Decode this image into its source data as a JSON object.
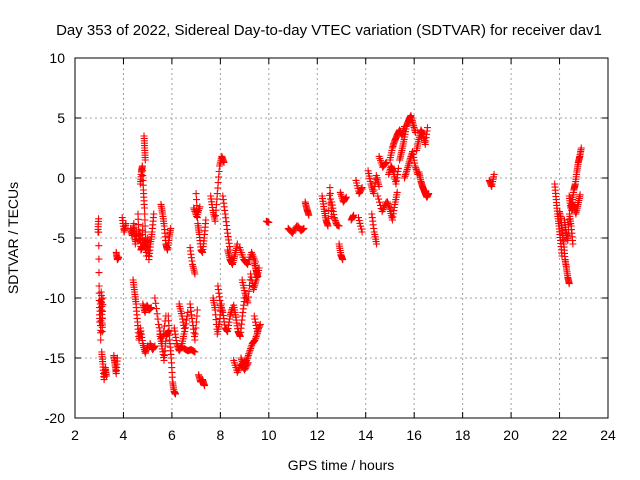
{
  "chart_data": {
    "type": "scatter",
    "title": "Day 353 of 2022, Sidereal Day-to-day VTEC variation (SDTVAR) for receiver dav1",
    "xlabel": "GPS time / hours",
    "ylabel": "SDTVAR / TECUs",
    "xlim": [
      2,
      24
    ],
    "ylim": [
      -20,
      10
    ],
    "xticks": [
      "2",
      "4",
      "6",
      "8",
      "10",
      "12",
      "14",
      "16",
      "18",
      "20",
      "22",
      "24"
    ],
    "yticks": [
      "10",
      "5",
      "0",
      "-5",
      "-10",
      "-15",
      "-20"
    ],
    "grid": true,
    "marker": "+",
    "color": "#ff0000",
    "series": [
      {
        "name": "SDTVAR",
        "segments": [
          {
            "x0": 2.95,
            "x1": 3.15,
            "y": [
              -4.5,
              -3.4,
              -9,
              -12,
              -10.5,
              -13.5,
              -9.5,
              -11,
              -12.8,
              -10
            ]
          },
          {
            "x0": 3.1,
            "x1": 3.3,
            "y": [
              -14.5,
              -15.5,
              -16.8,
              -15.8,
              -16.5
            ]
          },
          {
            "x0": 3.6,
            "x1": 3.75,
            "y": [
              -14.8,
              -15.5,
              -16.3,
              -15
            ]
          },
          {
            "x0": 3.7,
            "x1": 3.8,
            "y": [
              -6.2,
              -6.8,
              -6.6
            ]
          },
          {
            "x0": 3.95,
            "x1": 4.1,
            "y": [
              -3.3,
              -4.5,
              -3.8
            ]
          },
          {
            "x0": 4.3,
            "x1": 4.55,
            "y": [
              -4.2,
              -4.8,
              -3.8,
              -5.5,
              -4.5
            ]
          },
          {
            "x0": 4.4,
            "x1": 4.7,
            "y": [
              -8.5,
              -9.5,
              -10.5,
              -12,
              -13.5,
              -12.8
            ]
          },
          {
            "x0": 4.6,
            "x1": 4.8,
            "y": [
              -3,
              -5.2,
              -4.5,
              -6,
              -5.8,
              -4
            ]
          },
          {
            "x0": 4.7,
            "x1": 4.95,
            "y": [
              -0.5,
              0.5,
              1,
              -1,
              -2.5,
              -5,
              -6.5
            ]
          },
          {
            "x0": 4.85,
            "x1": 4.9,
            "y": [
              3.5,
              2.5,
              1.5
            ]
          },
          {
            "x0": 4.85,
            "x1": 5.25,
            "y": [
              -5.2,
              -6,
              -5,
              -6.8,
              -5.5,
              -4.5,
              -3
            ]
          },
          {
            "x0": 4.8,
            "x1": 5.15,
            "y": [
              -10.5,
              -11.2,
              -10.6,
              -11,
              -10.8
            ]
          },
          {
            "x0": 4.7,
            "x1": 5.0,
            "y": [
              -12.5,
              -13.8,
              -14.6,
              -14
            ]
          },
          {
            "x0": 5.1,
            "x1": 5.3,
            "y": [
              -13.8,
              -14.3,
              -14
            ]
          },
          {
            "x0": 5.3,
            "x1": 5.75,
            "y": [
              -10,
              -12.2,
              -13.6,
              -11.5
            ]
          },
          {
            "x0": 5.55,
            "x1": 5.95,
            "y": [
              -2.2,
              -3,
              -4,
              -5.5,
              -6,
              -5,
              -4.2
            ]
          },
          {
            "x0": 5.5,
            "x1": 5.85,
            "y": [
              -13,
              -14,
              -15.2,
              -13.2,
              -12.8
            ]
          },
          {
            "x0": 5.85,
            "x1": 6.15,
            "y": [
              -11.5,
              -13.5,
              -15,
              -17,
              -17.8,
              -18
            ]
          },
          {
            "x0": 6.1,
            "x1": 6.5,
            "y": [
              -12.5,
              -13.8,
              -14.4,
              -14,
              -13
            ]
          },
          {
            "x0": 6.3,
            "x1": 6.65,
            "y": [
              -10.5,
              -11.5,
              -12.8,
              -11.2
            ]
          },
          {
            "x0": 6.5,
            "x1": 6.95,
            "y": [
              -14.2,
              -14.4,
              -14.3,
              -14.5
            ]
          },
          {
            "x0": 6.75,
            "x1": 6.95,
            "y": [
              -5.8,
              -7.2,
              -8
            ]
          },
          {
            "x0": 6.75,
            "x1": 7.05,
            "y": [
              -10.5,
              -12,
              -13.5,
              -11
            ]
          },
          {
            "x0": 6.9,
            "x1": 7.15,
            "y": [
              -2.5,
              -3.2,
              -2.4
            ]
          },
          {
            "x0": 7.0,
            "x1": 7.4,
            "y": [
              -1.3,
              -3.8,
              -4.7,
              -6,
              -6.2,
              -5,
              -3.5
            ]
          },
          {
            "x0": 7.1,
            "x1": 7.35,
            "y": [
              -16.4,
              -17,
              -16.8,
              -17.3
            ]
          },
          {
            "x0": 7.6,
            "x1": 8.15,
            "y": [
              -1.5,
              -2.7,
              -3.6,
              -1.3,
              1,
              1.8,
              1.3
            ]
          },
          {
            "x0": 7.7,
            "x1": 8.05,
            "y": [
              -10,
              -11,
              -13,
              -12,
              -10.5
            ]
          },
          {
            "x0": 7.9,
            "x1": 8.5,
            "y": [
              -9,
              -10.5,
              -11.2,
              -12.5,
              -12.8,
              -11.5,
              -10.8
            ]
          },
          {
            "x0": 8.1,
            "x1": 8.4,
            "y": [
              -1.5,
              -3,
              -4.6,
              -6
            ]
          },
          {
            "x0": 8.3,
            "x1": 8.7,
            "y": [
              -6,
              -6.8,
              -7.2,
              -6.4,
              -5.5
            ]
          },
          {
            "x0": 8.55,
            "x1": 9.0,
            "y": [
              -10.6,
              -11.6,
              -12.8,
              -13.2,
              -11.5,
              -10
            ]
          },
          {
            "x0": 8.55,
            "x1": 9.15,
            "y": [
              -15.2,
              -16.2,
              -15.5,
              -16,
              -15.4
            ]
          },
          {
            "x0": 8.8,
            "x1": 9.45,
            "y": [
              -5.8,
              -6.8,
              -7.2,
              -6.2,
              -7
            ]
          },
          {
            "x0": 8.9,
            "x1": 9.6,
            "y": [
              -8.5,
              -9.6,
              -10.4,
              -8,
              -9.3,
              -8.5,
              -7.5
            ]
          },
          {
            "x0": 8.85,
            "x1": 9.55,
            "y": [
              -15,
              -15.7,
              -15.2,
              -14.5,
              -13.8,
              -13.5,
              -12.8
            ]
          },
          {
            "x0": 9.4,
            "x1": 9.65,
            "y": [
              -11.5,
              -12.8,
              -12.2
            ]
          },
          {
            "x0": 9.4,
            "x1": 9.55,
            "y": [
              -7,
              -7.7,
              -8.2
            ]
          },
          {
            "x0": 9.9,
            "x1": 10.0,
            "y": [
              -3.6,
              -3.7
            ]
          },
          {
            "x0": 10.8,
            "x1": 11.15,
            "y": [
              -4.2,
              -4.6,
              -4
            ]
          },
          {
            "x0": 11.2,
            "x1": 11.45,
            "y": [
              -4,
              -4.4,
              -4.2
            ]
          },
          {
            "x0": 11.5,
            "x1": 11.65,
            "y": [
              -2,
              -2.6,
              -3.1
            ]
          },
          {
            "x0": 12.2,
            "x1": 12.6,
            "y": [
              -1.5,
              -2.6,
              -3.5,
              -4,
              -0.8,
              -3.2
            ]
          },
          {
            "x0": 12.6,
            "x1": 12.9,
            "y": [
              -2,
              -3.3,
              -3.9,
              -4
            ]
          },
          {
            "x0": 12.9,
            "x1": 13.05,
            "y": [
              -5.5,
              -6.4,
              -6.8
            ]
          },
          {
            "x0": 12.95,
            "x1": 13.2,
            "y": [
              -1.2,
              -2,
              -1.6
            ]
          },
          {
            "x0": 13.4,
            "x1": 13.5,
            "y": [
              -3.5,
              -3.1
            ]
          },
          {
            "x0": 13.6,
            "x1": 13.85,
            "y": [
              -0.2,
              -1.3,
              -0.8
            ]
          },
          {
            "x0": 13.7,
            "x1": 13.85,
            "y": [
              -3.3,
              -4.5
            ]
          },
          {
            "x0": 14.1,
            "x1": 14.55,
            "y": [
              0.6,
              -0.5,
              -1.3,
              0.2,
              -0.7
            ]
          },
          {
            "x0": 14.25,
            "x1": 14.45,
            "y": [
              -3,
              -4.5,
              -5.5
            ]
          },
          {
            "x0": 14.5,
            "x1": 14.85,
            "y": [
              -1.5,
              -2.8,
              -2
            ]
          },
          {
            "x0": 14.55,
            "x1": 14.85,
            "y": [
              1.8,
              0.9,
              1.3
            ]
          },
          {
            "x0": 14.9,
            "x1": 15.3,
            "y": [
              -2,
              -2.6,
              -3.5,
              -2.2,
              -1.2
            ]
          },
          {
            "x0": 14.95,
            "x1": 15.35,
            "y": [
              0.3,
              1,
              0.5,
              -0.5,
              0.8
            ]
          },
          {
            "x0": 15.0,
            "x1": 15.6,
            "y": [
              1.5,
              2.5,
              3.1,
              3.6,
              4,
              3.5,
              4.3
            ]
          },
          {
            "x0": 15.4,
            "x1": 16.05,
            "y": [
              1.5,
              2.3,
              3.2,
              4.3,
              4.8,
              5.2,
              4.5,
              3.8
            ]
          },
          {
            "x0": 15.6,
            "x1": 16.15,
            "y": [
              0,
              0.7,
              1.5,
              2.2,
              1,
              0.3
            ]
          },
          {
            "x0": 16.1,
            "x1": 16.55,
            "y": [
              2.3,
              3.2,
              4,
              3.6,
              2.8,
              4.2
            ]
          },
          {
            "x0": 16.2,
            "x1": 16.6,
            "y": [
              0.5,
              -0.3,
              -0.8,
              -1.2,
              -1.6,
              -1.3
            ]
          },
          {
            "x0": 19.1,
            "x1": 19.3,
            "y": [
              -0.2,
              -0.7,
              0.3
            ]
          },
          {
            "x0": 21.8,
            "x1": 22.1,
            "y": [
              -0.5,
              -1.8,
              -3,
              -4,
              -5.2,
              -6.5
            ]
          },
          {
            "x0": 22.0,
            "x1": 22.4,
            "y": [
              -2.8,
              -3.5,
              -4.6,
              -5.5,
              -6.8,
              -7.5,
              -8.3,
              -8.8
            ]
          },
          {
            "x0": 22.2,
            "x1": 22.55,
            "y": [
              -3.5,
              -4.5,
              -5.2,
              -3,
              -4,
              -5.5
            ]
          },
          {
            "x0": 22.4,
            "x1": 22.9,
            "y": [
              -1.5,
              -2.5,
              -2,
              -1,
              -0.5,
              0.5,
              1.3,
              1.8,
              2.5
            ]
          },
          {
            "x0": 22.5,
            "x1": 22.85,
            "y": [
              -2.7,
              -2.3,
              -3,
              -2.2,
              -1.4
            ]
          }
        ]
      }
    ]
  }
}
